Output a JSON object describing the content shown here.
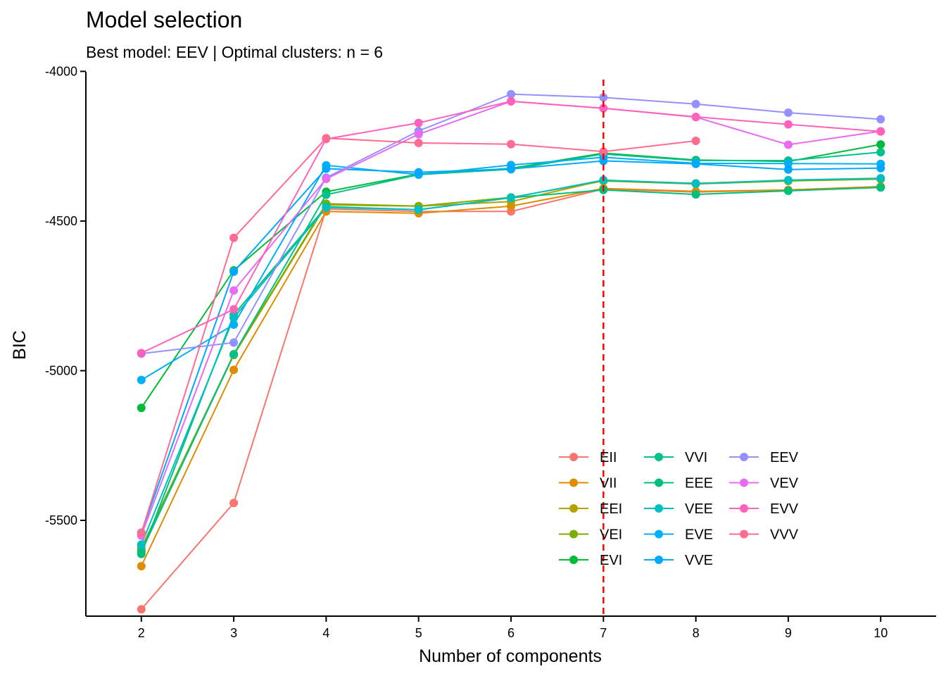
{
  "chart_data": {
    "type": "line",
    "title": "Model selection",
    "subtitle": "Best model: EEV | Optimal clusters: n = 6",
    "xlabel": "Number of components",
    "ylabel": "BIC",
    "x": [
      2,
      3,
      4,
      5,
      6,
      7,
      8,
      9,
      10
    ],
    "x_tick_labels": [
      "2",
      "3",
      "4",
      "5",
      "6",
      "7",
      "8",
      "9",
      "10"
    ],
    "ylim": [
      -5820,
      -3985
    ],
    "y_ticks": [
      -4000,
      -4500,
      -5000,
      -5500
    ],
    "y_tick_labels": [
      "-4000",
      "-4500",
      "-5000",
      "-5500"
    ],
    "grid": false,
    "legend_position": "bottom-right",
    "reference_line": {
      "axis": "x",
      "value": 7,
      "color": "#ff0000",
      "style": "dashed"
    },
    "series": [
      {
        "name": "EII",
        "color": "#F8766D",
        "values": [
          -5797,
          -5442,
          -4460,
          -4468,
          -4468,
          -4393,
          -4403,
          -4396,
          -4385
        ]
      },
      {
        "name": "VII",
        "color": "#DE8C00",
        "values": [
          -5653,
          -4997,
          -4468,
          -4474,
          -4450,
          -4391,
          -4401,
          -4396,
          -4385
        ]
      },
      {
        "name": "EEI",
        "color": "#B79F00",
        "values": [
          -5599,
          -4948,
          -4446,
          -4450,
          -4435,
          -4364,
          -4374,
          -4364,
          -4360
        ]
      },
      {
        "name": "VEI",
        "color": "#7CAE00",
        "values": [
          -5592,
          -4945,
          -4442,
          -4450,
          -4421,
          -4366,
          -4376,
          -4366,
          -4360
        ]
      },
      {
        "name": "EVI",
        "color": "#00BA38",
        "values": [
          -5124,
          -4665,
          -4402,
          -4343,
          -4324,
          -4273,
          -4296,
          -4301,
          -4244
        ]
      },
      {
        "name": "VVI",
        "color": "#00C08B",
        "values": [
          -5605,
          -4945,
          -4412,
          -4345,
          -4327,
          -4276,
          -4298,
          -4298,
          -4270
        ]
      },
      {
        "name": "EEE",
        "color": "#00BF7D",
        "values": [
          -5612,
          -4813,
          -4452,
          -4462,
          -4422,
          -4396,
          -4411,
          -4399,
          -4388
        ]
      },
      {
        "name": "VEE",
        "color": "#00BFC4",
        "values": [
          -5581,
          -4823,
          -4455,
          -4462,
          -4422,
          -4363,
          -4375,
          -4363,
          -4357
        ]
      },
      {
        "name": "EVE",
        "color": "#00B0F6",
        "values": [
          -5031,
          -4846,
          -4314,
          -4345,
          -4313,
          -4287,
          -4307,
          -4308,
          -4309
        ]
      },
      {
        "name": "VVE",
        "color": "#00A9FF",
        "values": [
          -5541,
          -4669,
          -4325,
          -4337,
          -4326,
          -4299,
          -4309,
          -4328,
          -4323
        ]
      },
      {
        "name": "EEV",
        "color": "#9590FF",
        "values": [
          -4943,
          -4906,
          -4355,
          -4199,
          -4076,
          -4087,
          -4109,
          -4138,
          -4160
        ]
      },
      {
        "name": "VEV",
        "color": "#E76BF3",
        "values": [
          -5551,
          -4732,
          -4359,
          -4210,
          -4100,
          -4123,
          -4153,
          -4245,
          -4200
        ]
      },
      {
        "name": "EVV",
        "color": "#FF62BC",
        "values": [
          -4941,
          -4795,
          -4226,
          -4172,
          -4100,
          -4123,
          -4152,
          -4177,
          -4201
        ]
      },
      {
        "name": "VVV",
        "color": "#FF6C91",
        "values": [
          -5542,
          -4556,
          -4223,
          -4239,
          -4243,
          -4268,
          -4232,
          null,
          null
        ]
      }
    ],
    "legend_order": [
      "EII",
      "VII",
      "EEI",
      "VEI",
      "EVI",
      "VVI",
      "EEE",
      "VEE",
      "EVE",
      "VVE",
      "EEV",
      "VEV",
      "EVV",
      "VVV"
    ]
  }
}
